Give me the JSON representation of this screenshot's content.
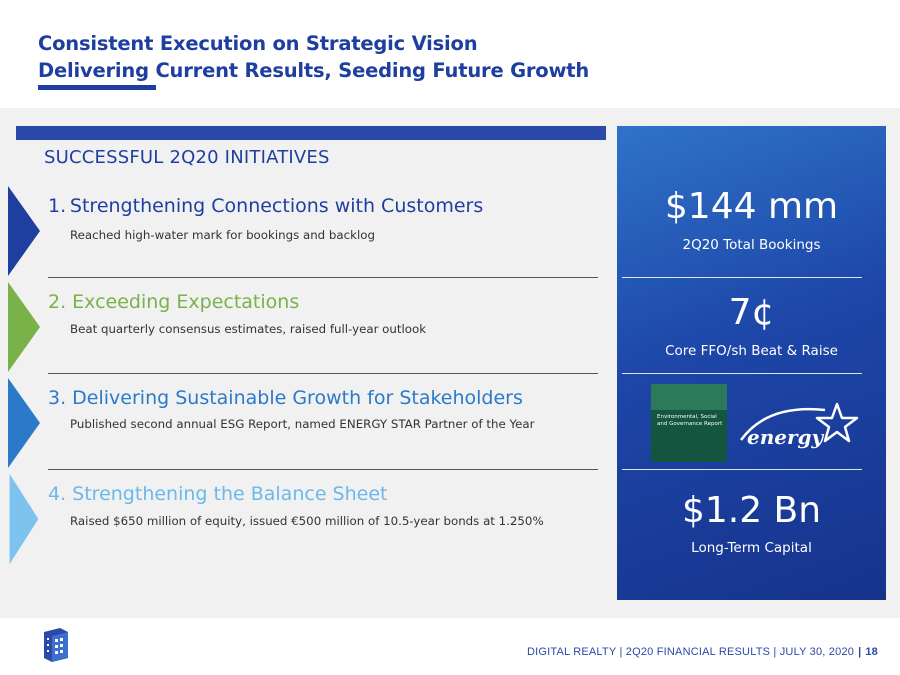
{
  "header": {
    "title_line1": "Consistent Execution on Strategic Vision",
    "title_line2": "Delivering Current Results, Seeding Future Growth"
  },
  "initiatives": {
    "heading": "SUCCESSFUL 2Q20 INITIATIVES",
    "items": [
      {
        "title": "1. Strengthening Connections with Customers",
        "desc": "Reached high-water mark for bookings and backlog",
        "color": "#1f3fa0",
        "chevron_color": "#1f3fa0"
      },
      {
        "title": "2. Exceeding Expectations",
        "desc": "Beat quarterly consensus estimates, raised full-year outlook",
        "color": "#7ab24a",
        "chevron_color": "#7ab24a"
      },
      {
        "title": "3. Delivering Sustainable Growth for Stakeholders",
        "desc": "Published second annual ESG Report, named ENERGY STAR Partner of the Year",
        "color": "#2b7ac9",
        "chevron_color": "#2b7ac9"
      },
      {
        "title": "4. Strengthening the Balance Sheet",
        "desc": "Raised $650 million of equity, issued €500 million of 10.5-year bonds at 1.250%",
        "color": "#6ab8ec",
        "chevron_color": "#7ec3f0"
      }
    ]
  },
  "stats": {
    "bookings_value": "$144 mm",
    "bookings_label": "2Q20 Total Bookings",
    "ffo_value": "7¢",
    "ffo_label": "Core FFO/sh Beat & Raise",
    "esg_report_text": "Environmental, Social and Governance Report",
    "energy_logo_text": "energy",
    "capital_value": "$1.2 Bn",
    "capital_label": "Long-Term Capital"
  },
  "footer": {
    "text": "DIGITAL REALTY | 2Q20 FINANCIAL RESULTS | JULY 30, 2020",
    "separator": "|",
    "page_number": "18"
  },
  "colors": {
    "brand_blue": "#1f3fa0",
    "panel_blue": "#1d46a8",
    "green": "#7ab24a",
    "mid_blue": "#2b7ac9",
    "light_blue": "#6ab8ec"
  }
}
